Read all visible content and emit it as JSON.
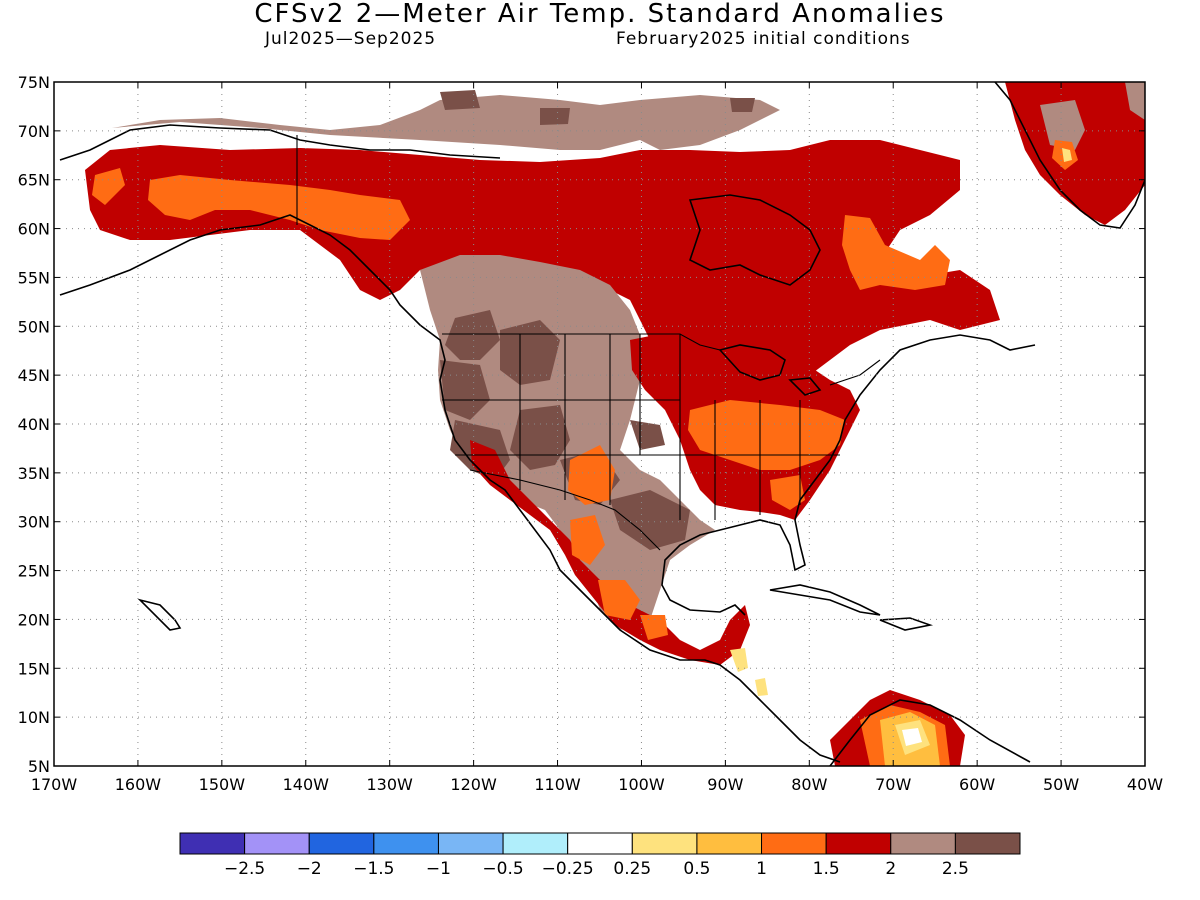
{
  "title": "CFSv2 2—Meter Air Temp. Standard Anomalies",
  "subtitle_left": "Jul2025—Sep2025",
  "subtitle_right": "February2025 initial conditions",
  "lat_labels": [
    "75N",
    "70N",
    "65N",
    "60N",
    "55N",
    "50N",
    "45N",
    "40N",
    "35N",
    "30N",
    "25N",
    "20N",
    "15N",
    "10N",
    "5N"
  ],
  "lon_labels": [
    "170W",
    "160W",
    "150W",
    "140W",
    "130W",
    "120W",
    "110W",
    "100W",
    "90W",
    "80W",
    "70W",
    "60W",
    "50W",
    "40W"
  ],
  "colorbar": {
    "colors": [
      "#3f2fb3",
      "#a392f7",
      "#2165e0",
      "#3e91ef",
      "#79b6f5",
      "#b0eefb",
      "#ffffff",
      "#fee27e",
      "#ffbe3f",
      "#ff6c14",
      "#c00000",
      "#b08a80",
      "#7a5048"
    ],
    "labels": [
      "−2.5",
      "−2",
      "−1.5",
      "−1",
      "−0.5",
      "−0.25",
      "0.25",
      "0.5",
      "1",
      "1.5",
      "2",
      "2.5"
    ]
  },
  "legend_colors": {
    "brown_high": "#7a5048",
    "taupe": "#b08a80",
    "red": "#c00000",
    "orange": "#ff6c14",
    "light_orange": "#ffbe3f",
    "yellow": "#fee27e"
  }
}
